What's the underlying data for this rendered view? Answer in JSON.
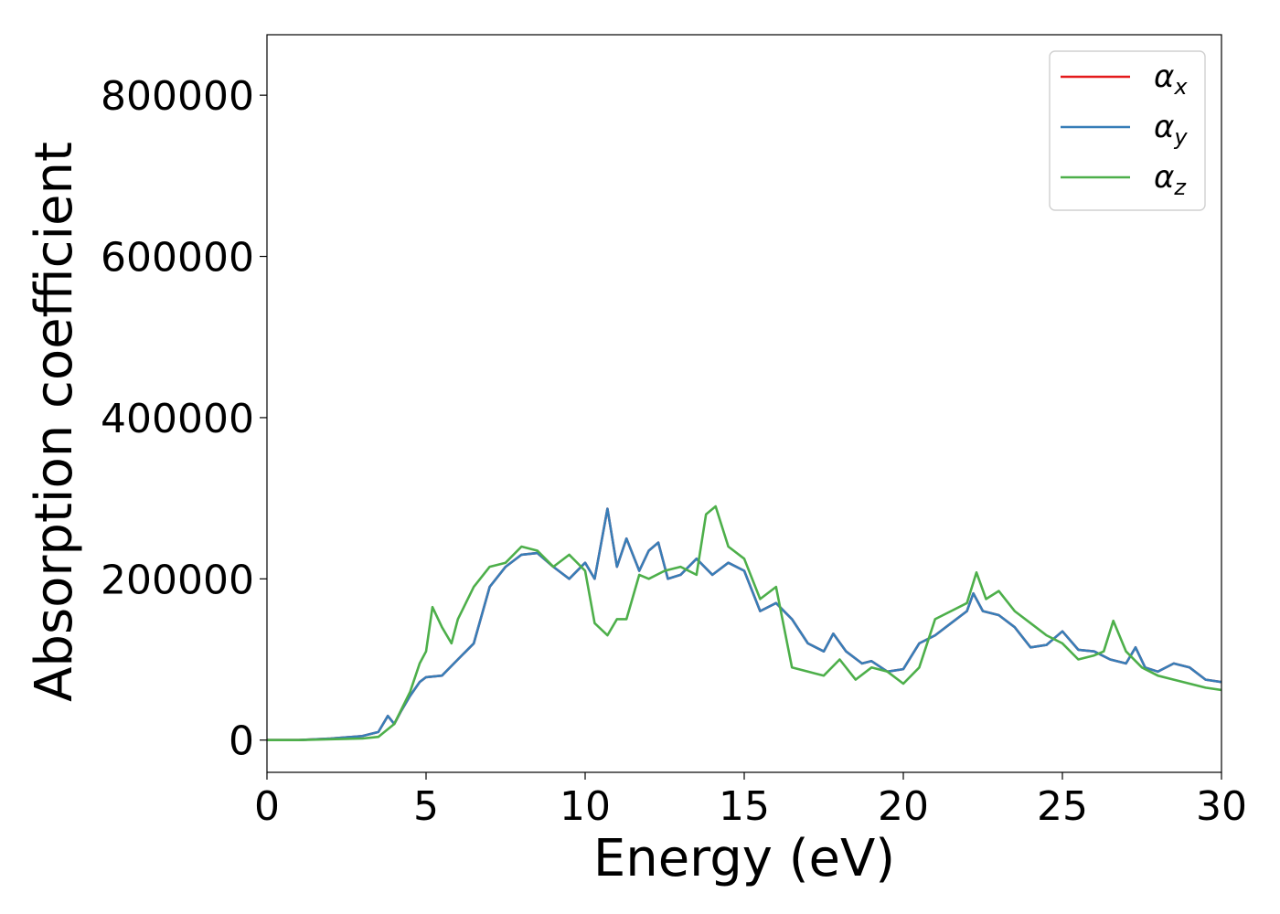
{
  "chart_data": {
    "type": "line",
    "title": "",
    "xlabel": "Energy (eV)",
    "ylabel": "Absorption coefficient",
    "xlim": [
      0,
      30
    ],
    "ylim": [
      -40000,
      875000
    ],
    "xticks": [
      0,
      5,
      10,
      15,
      20,
      25,
      30
    ],
    "yticks": [
      0,
      200000,
      400000,
      600000,
      800000
    ],
    "grid": false,
    "legend_position": "top-right",
    "series": [
      {
        "name": "αx",
        "symbol": "α",
        "subscript": "x",
        "color": "#e41a1c",
        "x": [
          0,
          1,
          2,
          3,
          3.5,
          3.8,
          4.0,
          4.2,
          4.5,
          4.8,
          5.0,
          5.5,
          6.0,
          6.5,
          7.0,
          7.5,
          8.0,
          8.5,
          9.0,
          9.5,
          10.0,
          10.3,
          10.7,
          11.0,
          11.3,
          11.7,
          12.0,
          12.3,
          12.6,
          13.0,
          13.5,
          14.0,
          14.5,
          15.0,
          15.5,
          16.0,
          16.5,
          17.0,
          17.5,
          17.8,
          18.2,
          18.7,
          19.0,
          19.5,
          20.0,
          20.5,
          21.0,
          21.5,
          22.0,
          22.2,
          22.5,
          23.0,
          23.5,
          24.0,
          24.5,
          25.0,
          25.5,
          26.0,
          26.5,
          27.0,
          27.3,
          27.6,
          28.0,
          28.5,
          29.0,
          29.5,
          30.0
        ],
        "y": [
          0,
          0,
          2000,
          5000,
          10000,
          30000,
          20000,
          35000,
          55000,
          72000,
          78000,
          80000,
          100000,
          120000,
          190000,
          215000,
          230000,
          232000,
          215000,
          200000,
          220000,
          200000,
          287000,
          215000,
          250000,
          210000,
          235000,
          245000,
          200000,
          205000,
          225000,
          205000,
          220000,
          210000,
          160000,
          170000,
          150000,
          120000,
          110000,
          132000,
          110000,
          95000,
          98000,
          85000,
          88000,
          120000,
          130000,
          145000,
          160000,
          182000,
          160000,
          155000,
          140000,
          115000,
          118000,
          135000,
          112000,
          110000,
          100000,
          95000,
          115000,
          90000,
          85000,
          95000,
          90000,
          75000,
          72000
        ]
      },
      {
        "name": "αy",
        "symbol": "α",
        "subscript": "y",
        "color": "#377eb8",
        "x": [
          0,
          1,
          2,
          3,
          3.5,
          3.8,
          4.0,
          4.2,
          4.5,
          4.8,
          5.0,
          5.5,
          6.0,
          6.5,
          7.0,
          7.5,
          8.0,
          8.5,
          9.0,
          9.5,
          10.0,
          10.3,
          10.7,
          11.0,
          11.3,
          11.7,
          12.0,
          12.3,
          12.6,
          13.0,
          13.5,
          14.0,
          14.5,
          15.0,
          15.5,
          16.0,
          16.5,
          17.0,
          17.5,
          17.8,
          18.2,
          18.7,
          19.0,
          19.5,
          20.0,
          20.5,
          21.0,
          21.5,
          22.0,
          22.2,
          22.5,
          23.0,
          23.5,
          24.0,
          24.5,
          25.0,
          25.5,
          26.0,
          26.5,
          27.0,
          27.3,
          27.6,
          28.0,
          28.5,
          29.0,
          29.5,
          30.0
        ],
        "y": [
          0,
          0,
          2000,
          5000,
          10000,
          30000,
          20000,
          35000,
          55000,
          72000,
          78000,
          80000,
          100000,
          120000,
          190000,
          215000,
          230000,
          232000,
          215000,
          200000,
          220000,
          200000,
          287000,
          215000,
          250000,
          210000,
          235000,
          245000,
          200000,
          205000,
          225000,
          205000,
          220000,
          210000,
          160000,
          170000,
          150000,
          120000,
          110000,
          132000,
          110000,
          95000,
          98000,
          85000,
          88000,
          120000,
          130000,
          145000,
          160000,
          182000,
          160000,
          155000,
          140000,
          115000,
          118000,
          135000,
          112000,
          110000,
          100000,
          95000,
          115000,
          90000,
          85000,
          95000,
          90000,
          75000,
          72000
        ]
      },
      {
        "name": "αz",
        "symbol": "α",
        "subscript": "z",
        "color": "#4daf4a",
        "x": [
          0,
          1,
          2,
          3,
          3.5,
          4.0,
          4.5,
          4.8,
          5.0,
          5.2,
          5.5,
          5.8,
          6.0,
          6.5,
          7.0,
          7.5,
          8.0,
          8.5,
          9.0,
          9.5,
          10.0,
          10.3,
          10.7,
          11.0,
          11.3,
          11.7,
          12.0,
          12.5,
          13.0,
          13.5,
          13.8,
          14.1,
          14.5,
          15.0,
          15.5,
          16.0,
          16.5,
          17.0,
          17.5,
          18.0,
          18.5,
          19.0,
          19.5,
          20.0,
          20.5,
          21.0,
          21.5,
          22.0,
          22.3,
          22.6,
          23.0,
          23.5,
          24.0,
          24.5,
          25.0,
          25.5,
          26.0,
          26.3,
          26.6,
          27.0,
          27.5,
          28.0,
          28.5,
          29.0,
          29.5,
          30.0
        ],
        "y": [
          0,
          0,
          1000,
          2000,
          4000,
          20000,
          60000,
          95000,
          110000,
          165000,
          140000,
          120000,
          150000,
          190000,
          215000,
          220000,
          240000,
          235000,
          215000,
          230000,
          210000,
          145000,
          130000,
          150000,
          150000,
          205000,
          200000,
          210000,
          215000,
          205000,
          280000,
          290000,
          240000,
          225000,
          175000,
          190000,
          90000,
          85000,
          80000,
          100000,
          75000,
          90000,
          85000,
          70000,
          90000,
          150000,
          160000,
          170000,
          208000,
          175000,
          185000,
          160000,
          145000,
          130000,
          120000,
          100000,
          105000,
          110000,
          148000,
          110000,
          90000,
          80000,
          75000,
          70000,
          65000,
          62000
        ]
      }
    ]
  }
}
